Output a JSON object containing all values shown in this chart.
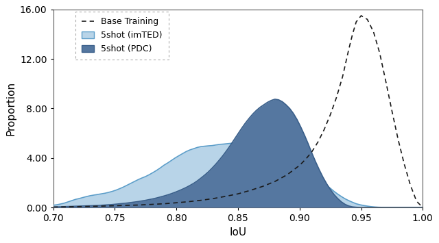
{
  "title": "",
  "xlabel": "IoU",
  "ylabel": "Proportion",
  "xlim": [
    0.7,
    1.0
  ],
  "ylim": [
    0.0,
    16.0
  ],
  "yticks": [
    0.0,
    4.0,
    8.0,
    12.0,
    16.0
  ],
  "xticks": [
    0.7,
    0.75,
    0.8,
    0.85,
    0.9,
    0.95,
    1.0
  ],
  "color_imted": "#b8d4e8",
  "color_imted_edge": "#5b9dc9",
  "color_pdc": "#5577a0",
  "color_pdc_edge": "#3a5f8a",
  "color_base": "#1a1a1a",
  "legend_labels": [
    "Base Training",
    "5shot (imTED)",
    "5shot (PDC)"
  ],
  "base_x": [
    0.7,
    0.71,
    0.72,
    0.73,
    0.74,
    0.75,
    0.76,
    0.77,
    0.78,
    0.79,
    0.8,
    0.81,
    0.82,
    0.83,
    0.84,
    0.85,
    0.86,
    0.87,
    0.88,
    0.89,
    0.9,
    0.905,
    0.91,
    0.915,
    0.92,
    0.925,
    0.93,
    0.935,
    0.94,
    0.943,
    0.946,
    0.95,
    0.955,
    0.96,
    0.965,
    0.97,
    0.975,
    0.98,
    0.985,
    0.99,
    0.995,
    1.0
  ],
  "base_y": [
    0.03,
    0.05,
    0.07,
    0.09,
    0.11,
    0.14,
    0.17,
    0.2,
    0.25,
    0.3,
    0.38,
    0.47,
    0.58,
    0.72,
    0.9,
    1.1,
    1.38,
    1.7,
    2.1,
    2.65,
    3.4,
    3.9,
    4.5,
    5.3,
    6.3,
    7.5,
    8.9,
    10.6,
    12.8,
    14.0,
    15.0,
    15.5,
    15.2,
    14.2,
    12.5,
    10.2,
    7.8,
    5.5,
    3.5,
    1.8,
    0.5,
    0.0
  ],
  "imted_x": [
    0.7,
    0.703,
    0.706,
    0.709,
    0.712,
    0.715,
    0.718,
    0.721,
    0.724,
    0.727,
    0.73,
    0.733,
    0.736,
    0.739,
    0.742,
    0.745,
    0.748,
    0.751,
    0.754,
    0.757,
    0.76,
    0.763,
    0.766,
    0.769,
    0.772,
    0.775,
    0.778,
    0.781,
    0.784,
    0.787,
    0.79,
    0.793,
    0.796,
    0.799,
    0.802,
    0.805,
    0.808,
    0.811,
    0.814,
    0.817,
    0.82,
    0.823,
    0.826,
    0.829,
    0.832,
    0.835,
    0.838,
    0.841,
    0.844,
    0.847,
    0.85,
    0.853,
    0.856,
    0.859,
    0.862,
    0.865,
    0.868,
    0.871,
    0.874,
    0.877,
    0.88,
    0.883,
    0.886,
    0.889,
    0.892,
    0.895,
    0.898,
    0.901,
    0.904,
    0.907,
    0.91,
    0.913,
    0.916,
    0.919,
    0.922,
    0.925,
    0.928,
    0.931,
    0.934,
    0.937,
    0.94,
    0.943,
    0.946,
    0.949,
    0.952,
    0.955,
    0.958,
    0.961,
    0.964,
    0.967,
    0.97,
    0.973,
    0.976,
    0.979,
    0.982,
    0.985,
    0.988,
    0.991,
    0.994,
    0.997,
    1.0
  ],
  "imted_y": [
    0.18,
    0.22,
    0.28,
    0.35,
    0.45,
    0.55,
    0.65,
    0.72,
    0.8,
    0.88,
    0.95,
    1.0,
    1.05,
    1.1,
    1.15,
    1.22,
    1.3,
    1.4,
    1.52,
    1.65,
    1.8,
    1.95,
    2.1,
    2.25,
    2.38,
    2.5,
    2.65,
    2.82,
    3.0,
    3.2,
    3.42,
    3.6,
    3.8,
    4.0,
    4.18,
    4.35,
    4.52,
    4.65,
    4.75,
    4.85,
    4.92,
    4.95,
    4.98,
    5.0,
    5.05,
    5.1,
    5.12,
    5.15,
    5.18,
    5.2,
    5.22,
    5.2,
    5.18,
    5.15,
    5.1,
    5.05,
    4.98,
    4.9,
    4.82,
    4.75,
    4.65,
    4.52,
    4.38,
    4.22,
    4.05,
    3.88,
    3.7,
    3.5,
    3.28,
    3.05,
    2.8,
    2.55,
    2.3,
    2.05,
    1.8,
    1.55,
    1.3,
    1.08,
    0.88,
    0.7,
    0.55,
    0.42,
    0.3,
    0.22,
    0.16,
    0.11,
    0.07,
    0.04,
    0.02,
    0.01,
    0.0,
    0.0,
    0.0,
    0.0,
    0.0,
    0.0,
    0.0,
    0.0,
    0.0,
    0.0,
    0.0
  ],
  "pdc_x": [
    0.7,
    0.703,
    0.706,
    0.709,
    0.712,
    0.715,
    0.718,
    0.721,
    0.724,
    0.727,
    0.73,
    0.733,
    0.736,
    0.739,
    0.742,
    0.745,
    0.748,
    0.751,
    0.754,
    0.757,
    0.76,
    0.763,
    0.766,
    0.769,
    0.772,
    0.775,
    0.778,
    0.781,
    0.784,
    0.787,
    0.79,
    0.793,
    0.796,
    0.799,
    0.802,
    0.805,
    0.808,
    0.811,
    0.814,
    0.817,
    0.82,
    0.823,
    0.826,
    0.829,
    0.832,
    0.835,
    0.838,
    0.841,
    0.844,
    0.847,
    0.85,
    0.853,
    0.856,
    0.859,
    0.862,
    0.865,
    0.868,
    0.871,
    0.874,
    0.877,
    0.88,
    0.883,
    0.886,
    0.889,
    0.892,
    0.895,
    0.898,
    0.901,
    0.904,
    0.907,
    0.91,
    0.913,
    0.916,
    0.919,
    0.922,
    0.925,
    0.928,
    0.931,
    0.934,
    0.937,
    0.94,
    0.943,
    0.946,
    0.949,
    0.952,
    0.955,
    0.958,
    0.961,
    0.964,
    0.967,
    0.97,
    0.973,
    0.976,
    0.979,
    0.982,
    0.985,
    0.988,
    0.991,
    0.994,
    0.997,
    1.0
  ],
  "pdc_y": [
    0.04,
    0.05,
    0.06,
    0.07,
    0.08,
    0.09,
    0.1,
    0.11,
    0.12,
    0.13,
    0.14,
    0.15,
    0.16,
    0.18,
    0.2,
    0.22,
    0.24,
    0.27,
    0.3,
    0.33,
    0.36,
    0.4,
    0.44,
    0.48,
    0.53,
    0.58,
    0.64,
    0.7,
    0.77,
    0.85,
    0.93,
    1.02,
    1.12,
    1.23,
    1.35,
    1.48,
    1.62,
    1.78,
    1.95,
    2.15,
    2.38,
    2.62,
    2.88,
    3.18,
    3.5,
    3.85,
    4.22,
    4.62,
    5.05,
    5.5,
    5.95,
    6.4,
    6.82,
    7.2,
    7.55,
    7.85,
    8.1,
    8.3,
    8.5,
    8.65,
    8.75,
    8.7,
    8.55,
    8.3,
    8.0,
    7.6,
    7.1,
    6.5,
    5.85,
    5.15,
    4.4,
    3.7,
    3.05,
    2.45,
    1.92,
    1.45,
    1.05,
    0.72,
    0.45,
    0.25,
    0.12,
    0.05,
    0.02,
    0.0,
    0.0,
    0.0,
    0.0,
    0.0,
    0.0,
    0.0,
    0.0,
    0.0,
    0.0,
    0.0,
    0.0,
    0.0,
    0.0,
    0.0,
    0.0,
    0.0,
    0.0
  ]
}
